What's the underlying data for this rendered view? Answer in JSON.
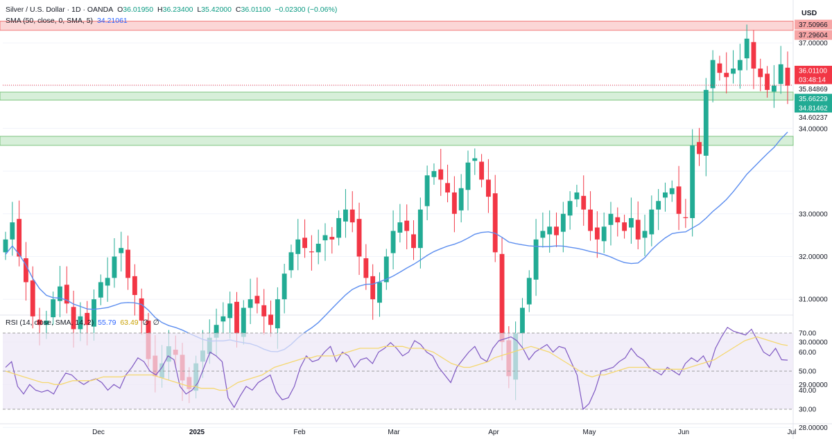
{
  "header": {
    "symbol": "Silver / U.S. Dollar · 1D · OANDA",
    "open_label": "O",
    "open": "36.01950",
    "high_label": "H",
    "high": "36.23400",
    "low_label": "L",
    "low": "35.42000",
    "close_label": "C",
    "close": "36.01100",
    "change": "−0.02300 (−0.06%)"
  },
  "sma_legend": {
    "label": "SMA (50, close, 0, SMA, 5)",
    "value": "34.21061"
  },
  "rsi_legend": {
    "label": "RSI (14, close, SMA, 14, 2)",
    "rsi_value": "55.79",
    "sma_value": "63.49",
    "extra1": "∅",
    "extra2": "∅"
  },
  "currency": "USD",
  "colors": {
    "up": "#22ab94",
    "down": "#f23645",
    "sma": "#5b8def",
    "rsi": "#7e57c2",
    "rsi_ma": "#f5d76e",
    "zone_red": "#f8b4b4",
    "zone_green": "#b7e1b9"
  },
  "chart_data": [
    {
      "type": "candlestick",
      "title": "Silver / U.S. Dollar · 1D · OANDA",
      "ylabel": "USD",
      "ylim": [
        27.5,
        37.9
      ],
      "y_ticks": [
        "37.00000",
        "33.00000",
        "32.00000",
        "31.00000",
        "30.00000",
        "29.00000",
        "28.00000"
      ],
      "x_ticks": [
        "Dec",
        "2025",
        "Feb",
        "Mar",
        "Apr",
        "May",
        "Jun",
        "Jul"
      ],
      "price_labels": [
        {
          "label": "37.50966",
          "value": 37.50966,
          "kind": "zone-red"
        },
        {
          "label": "37.29604",
          "value": 37.29604,
          "kind": "zone-red"
        },
        {
          "label": "36.01100",
          "value": 36.011,
          "kind": "last"
        },
        {
          "label": "03:48:14",
          "kind": "countdown"
        },
        {
          "label": "35.84869",
          "value": 35.84869,
          "kind": "zone-green"
        },
        {
          "label": "35.66229",
          "value": 35.66229,
          "kind": "zone-green"
        },
        {
          "label": "34.81462",
          "value": 34.81462,
          "kind": "zone-green"
        },
        {
          "label": "34.60237",
          "value": 34.60237,
          "kind": "zone-green"
        },
        {
          "label": "34.00000",
          "value": 34.0,
          "kind": "tick"
        }
      ],
      "zones": [
        {
          "from": 37.29604,
          "to": 37.50966,
          "color": "red"
        },
        {
          "from": 35.66229,
          "to": 35.84869,
          "color": "green"
        },
        {
          "from": 34.60237,
          "to": 34.81462,
          "color": "green"
        }
      ],
      "close_series_approx": [
        32.4,
        32.8,
        32.0,
        31.4,
        30.6,
        30.4,
        30.5,
        31.0,
        31.3,
        30.9,
        30.3,
        30.6,
        30.4,
        31.0,
        31.4,
        31.5,
        32.0,
        32.2,
        31.5,
        31.1,
        30.5,
        29.6,
        29.2,
        29.5,
        29.9,
        29.7,
        29.1,
        28.9,
        29.5,
        29.8,
        30.1,
        30.4,
        30.6,
        30.9,
        30.2,
        30.8,
        31.0,
        30.9,
        30.6,
        30.4,
        31.0,
        31.6,
        32.1,
        32.4,
        32.2,
        32.1,
        32.3,
        32.5,
        32.4,
        32.9,
        33.1,
        32.8,
        32.0,
        31.5,
        31.0,
        31.4,
        32.0,
        32.6,
        32.8,
        32.6,
        32.2,
        33.1,
        33.9,
        34.0,
        33.8,
        33.5,
        33.0,
        33.6,
        34.2,
        34.3,
        33.8,
        33.4,
        32.1,
        30.0,
        29.2,
        30.2,
        30.8,
        31.5,
        32.4,
        32.6,
        32.7,
        32.5,
        33.0,
        33.3,
        33.5,
        33.1,
        32.6,
        32.4,
        32.7,
        33.0,
        32.8,
        32.6,
        32.9,
        32.4,
        32.6,
        33.1,
        33.3,
        33.5,
        33.6,
        33.0,
        32.9,
        34.6,
        34.4,
        35.9,
        36.6,
        36.3,
        36.2,
        36.4,
        36.6,
        37.1,
        36.4,
        36.2,
        35.9,
        36.0,
        36.5,
        36.0
      ]
    },
    {
      "type": "line",
      "title": "RSI (14, close, SMA, 14, 2)",
      "ylim": [
        27,
        75
      ],
      "y_ticks": [
        "70.00",
        "60.00",
        "50.00",
        "40.00",
        "30.00"
      ],
      "bands": [
        30,
        50,
        70
      ],
      "series": [
        {
          "name": "RSI",
          "color": "rsi",
          "values": [
            52,
            55,
            42,
            38,
            43,
            40,
            39,
            40,
            38,
            44,
            49,
            48,
            45,
            43,
            45,
            46,
            44,
            40,
            43,
            41,
            48,
            52,
            57,
            55,
            50,
            48,
            52,
            58,
            56,
            42,
            38,
            40,
            44,
            52,
            60,
            58,
            55,
            36,
            31,
            37,
            42,
            40,
            44,
            46,
            48,
            39,
            35,
            36,
            42,
            52,
            58,
            55,
            56,
            60,
            63,
            55,
            60,
            58,
            52,
            56,
            57,
            54,
            60,
            62,
            65,
            62,
            58,
            60,
            66,
            64,
            60,
            58,
            52,
            48,
            44,
            52,
            56,
            60,
            63,
            57,
            55,
            62,
            66,
            67,
            68,
            66,
            62,
            56,
            60,
            62,
            64,
            60,
            63,
            62,
            55,
            48,
            30,
            33,
            40,
            50,
            51,
            52,
            55,
            57,
            62,
            58,
            56,
            52,
            50,
            48,
            52,
            50,
            48,
            54,
            57,
            55,
            58,
            52,
            62,
            68,
            73,
            71,
            70,
            69,
            72,
            66,
            60,
            58,
            62,
            56,
            55.79
          ]
        },
        {
          "name": "RSI SMA",
          "color": "rsi_ma",
          "values": [
            50,
            49,
            48,
            47,
            46,
            45,
            44,
            44,
            43,
            43,
            44,
            45,
            45,
            45,
            45,
            46,
            47,
            47,
            47,
            47,
            48,
            48,
            48,
            48,
            48,
            47,
            46,
            45,
            44,
            43,
            42,
            42,
            41,
            41,
            41,
            40,
            40,
            42,
            44,
            45,
            46,
            47,
            48,
            50,
            52,
            53,
            54,
            55,
            56,
            57,
            57,
            58,
            58,
            58,
            58,
            59,
            60,
            61,
            62,
            62,
            62,
            62,
            63,
            63,
            63,
            63,
            62,
            62,
            62,
            61,
            60,
            58,
            56,
            54,
            53,
            52,
            52,
            53,
            54,
            55,
            57,
            58,
            59,
            60,
            61,
            62,
            63,
            62,
            61,
            60,
            58,
            56,
            54,
            52,
            50,
            48,
            47,
            48,
            48,
            49,
            50,
            51,
            52,
            52,
            52,
            52,
            51,
            51,
            51,
            51,
            51,
            51,
            52,
            53,
            54,
            55,
            56,
            58,
            60,
            62,
            64,
            66,
            67,
            68,
            67,
            66,
            65,
            64,
            63.49
          ]
        }
      ]
    }
  ]
}
